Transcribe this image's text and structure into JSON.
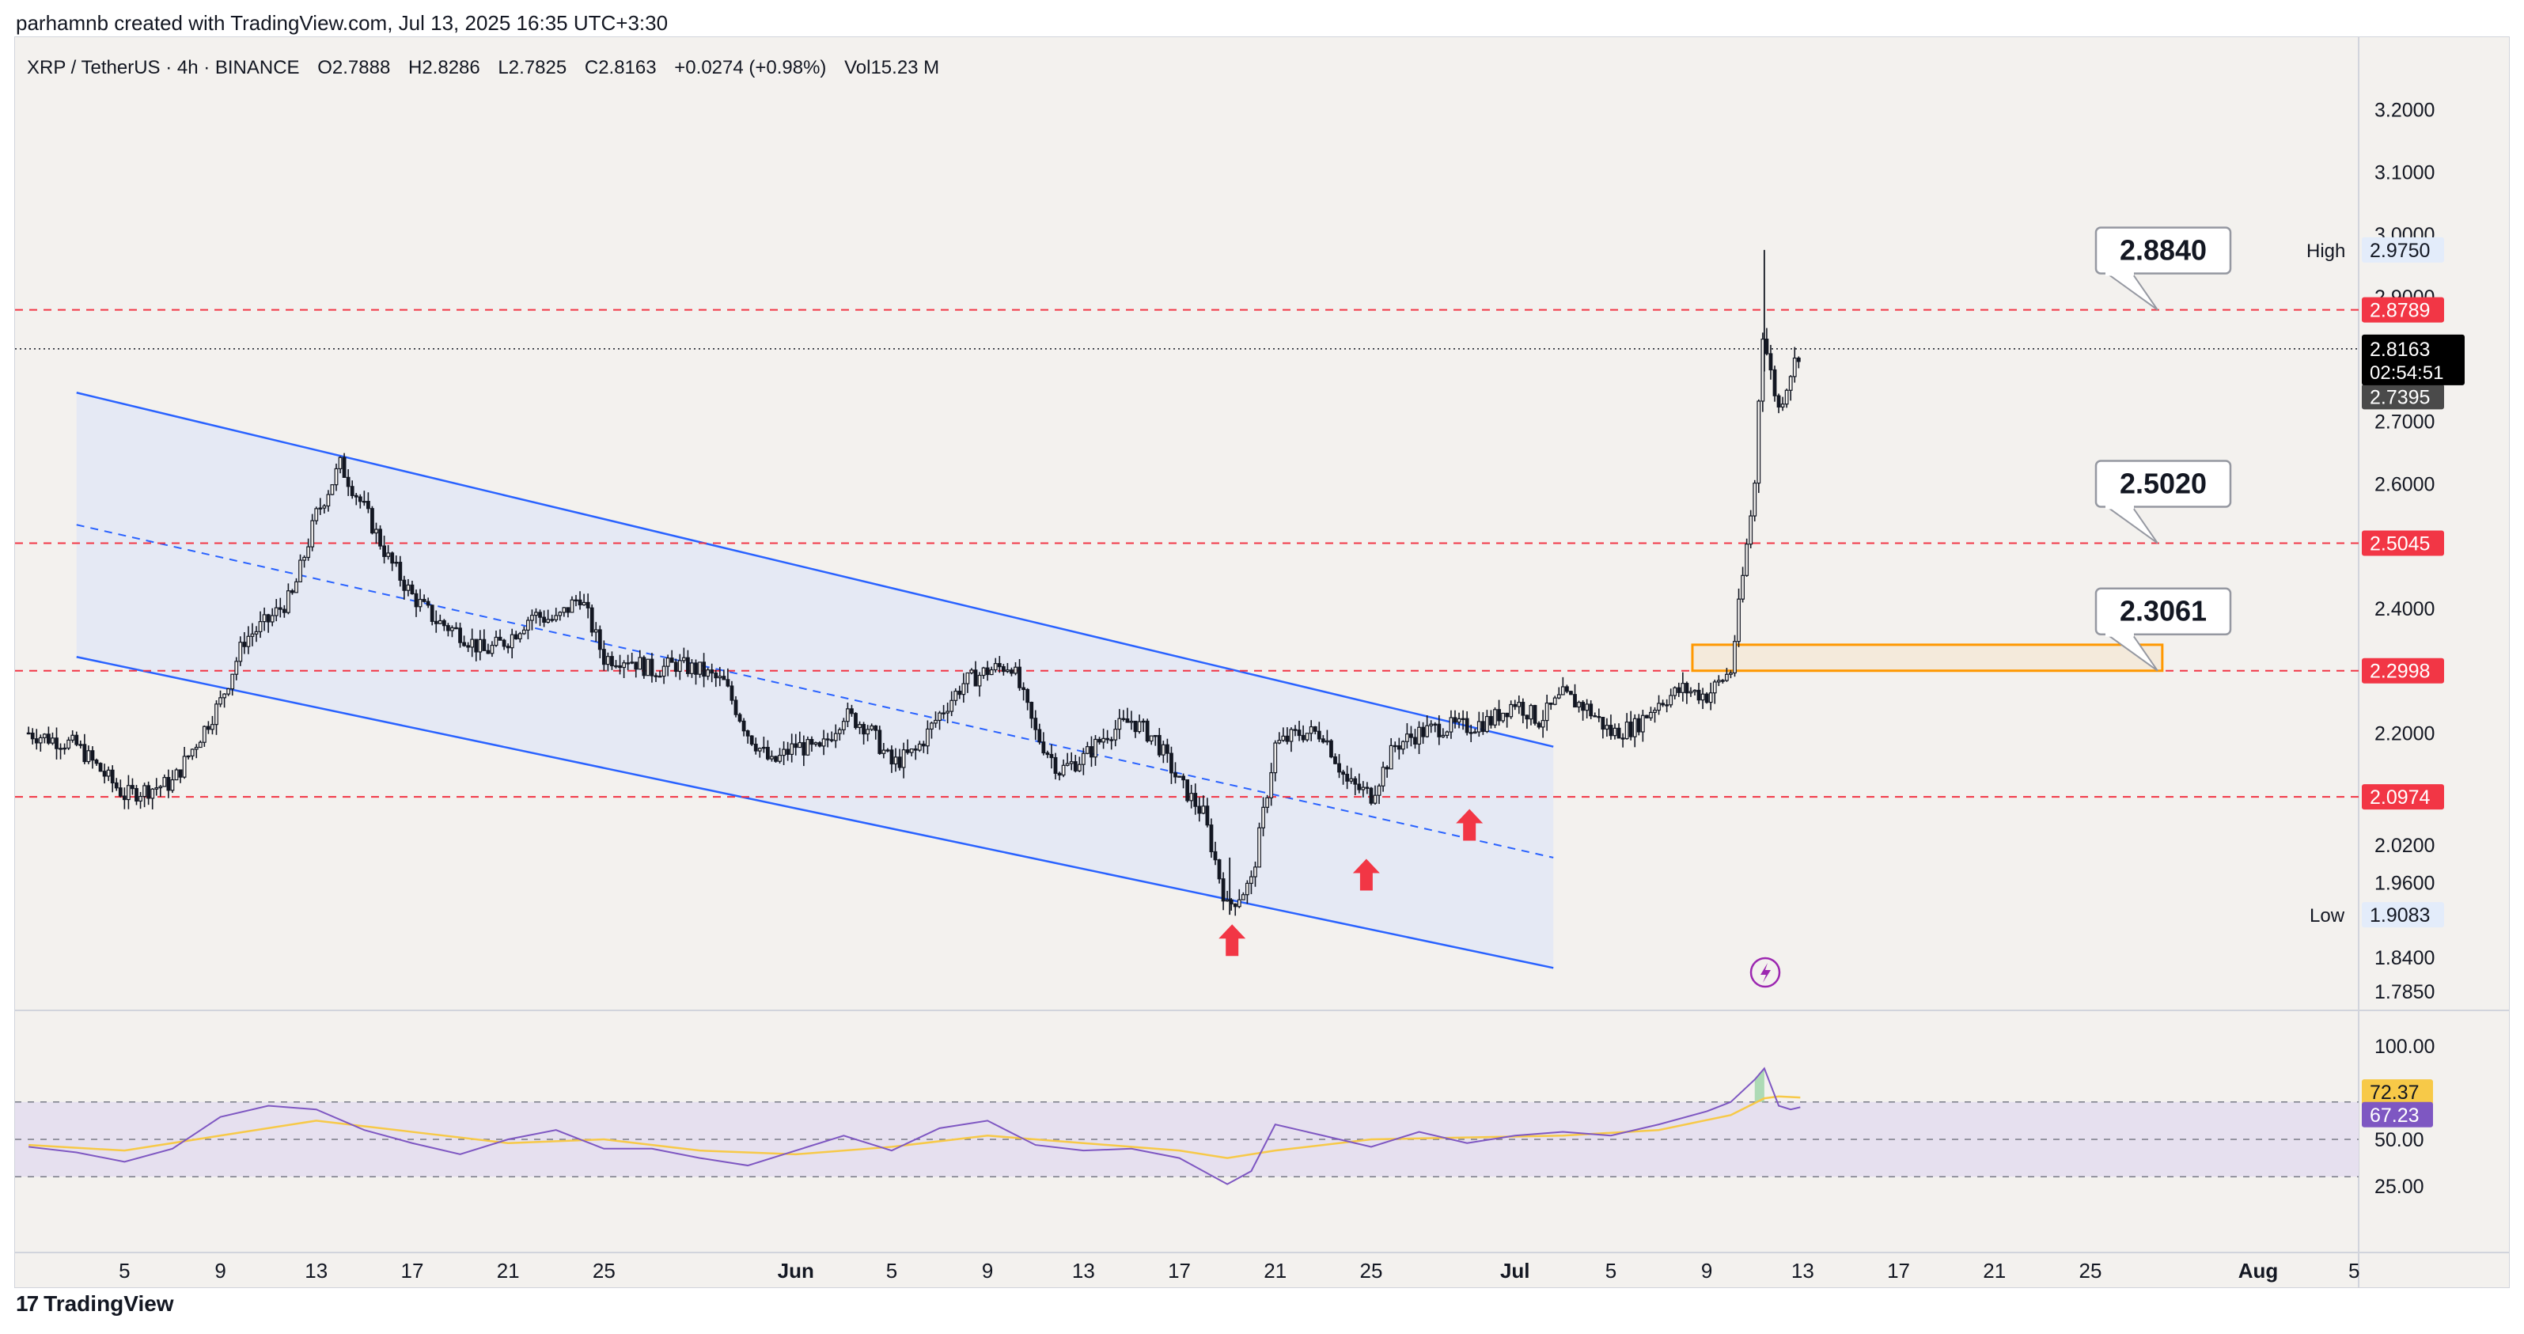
{
  "header": {
    "credit": "parhamnb created with TradingView.com, Jul 13, 2025 16:35 UTC+3:30",
    "symbol": "XRP / TetherUS · 4h · BINANCE",
    "open": "O2.7888",
    "high": "H2.8286",
    "low": "L2.7825",
    "close": "C2.8163",
    "change": "+0.0274 (+0.98%)",
    "volume": "Vol15.23 M"
  },
  "footer": {
    "logo": "17",
    "brand": "TradingView"
  },
  "colors": {
    "background": "#f3f1ee",
    "candle": "#131722",
    "channel_line": "#2962ff",
    "channel_fill": "#e3e8f4",
    "level_line": "#f23645",
    "zone": "#ff9800",
    "arrow": "#f23645",
    "rsi_line": "#7e57c2",
    "rsi_ma": "#f7c948",
    "rsi_band": "#e6e0ef"
  },
  "chart_data": {
    "type": "candlestick",
    "timeframe": "4h",
    "x_ticks": [
      "5",
      "9",
      "13",
      "17",
      "21",
      "25",
      "Jun",
      "5",
      "9",
      "13",
      "17",
      "21",
      "25",
      "Jul",
      "5",
      "9",
      "13",
      "17",
      "21",
      "25",
      "Aug",
      "5"
    ],
    "y_ticks": [
      3.2,
      3.1,
      3.0,
      2.9,
      2.8,
      2.7,
      2.6,
      2.5,
      2.4,
      2.3,
      2.2,
      2.1,
      2.02,
      1.96,
      1.9,
      1.84,
      1.785
    ],
    "y_tick_labels": [
      "3.2000",
      "3.1000",
      "3.0000",
      "2.9000",
      "2.8000",
      "2.7000",
      "2.6000",
      "2.5000",
      "2.4000",
      "2.3000",
      "2.2000",
      "2.1000",
      "2.0200",
      "1.9600",
      "1.9000",
      "1.8400",
      "1.7850"
    ],
    "ylim": [
      1.765,
      3.23
    ],
    "price_path": [
      [
        1,
        2.2
      ],
      [
        3,
        2.18
      ],
      [
        5,
        2.1
      ],
      [
        6,
        2.11
      ],
      [
        7,
        2.12
      ],
      [
        9,
        2.25
      ],
      [
        10,
        2.35
      ],
      [
        11,
        2.38
      ],
      [
        12,
        2.42
      ],
      [
        13,
        2.55
      ],
      [
        14,
        2.63
      ],
      [
        15,
        2.56
      ],
      [
        16,
        2.48
      ],
      [
        17,
        2.42
      ],
      [
        18,
        2.38
      ],
      [
        19,
        2.36
      ],
      [
        20,
        2.33
      ],
      [
        21,
        2.35
      ],
      [
        22,
        2.39
      ],
      [
        23,
        2.38
      ],
      [
        24,
        2.42
      ],
      [
        25,
        2.32
      ],
      [
        26,
        2.32
      ],
      [
        27,
        2.3
      ],
      [
        28,
        2.31
      ],
      [
        29,
        2.3
      ],
      [
        30,
        2.28
      ],
      [
        31,
        2.2
      ],
      [
        32,
        2.15
      ],
      [
        33,
        2.18
      ],
      [
        34,
        2.17
      ],
      [
        35,
        2.23
      ],
      [
        36,
        2.21
      ],
      [
        37,
        2.15
      ],
      [
        38,
        2.17
      ],
      [
        39,
        2.23
      ],
      [
        40,
        2.28
      ],
      [
        41,
        2.3
      ],
      [
        42,
        2.31
      ],
      [
        43,
        2.2
      ],
      [
        44,
        2.14
      ],
      [
        45,
        2.16
      ],
      [
        46,
        2.2
      ],
      [
        47,
        2.22
      ],
      [
        48,
        2.19
      ],
      [
        49,
        2.12
      ],
      [
        50,
        2.07
      ],
      [
        51,
        1.92
      ],
      [
        52,
        1.96
      ],
      [
        53,
        2.18
      ],
      [
        54,
        2.2
      ],
      [
        55,
        2.2
      ],
      [
        56,
        2.12
      ],
      [
        57,
        2.1
      ],
      [
        58,
        2.18
      ],
      [
        59,
        2.2
      ],
      [
        60,
        2.21
      ],
      [
        61,
        2.21
      ],
      [
        62,
        2.22
      ],
      [
        63,
        2.25
      ],
      [
        64,
        2.22
      ],
      [
        65,
        2.26
      ],
      [
        66,
        2.24
      ],
      [
        67,
        2.2
      ],
      [
        68,
        2.21
      ],
      [
        69,
        2.25
      ],
      [
        70,
        2.27
      ],
      [
        71,
        2.26
      ],
      [
        72,
        2.3
      ],
      [
        73,
        2.6
      ],
      [
        73.3,
        2.85
      ],
      [
        73.7,
        2.77
      ],
      [
        74,
        2.72
      ],
      [
        74.5,
        2.78
      ],
      [
        74.9,
        2.8163
      ]
    ],
    "high": {
      "label": "High",
      "value": 2.975,
      "value_label": "2.9750",
      "day": 73.4
    },
    "low": {
      "label": "Low",
      "value": 1.9083,
      "value_label": "1.9083",
      "day": 51.1
    },
    "last_price": {
      "value": 2.8163,
      "label": "2.8163",
      "countdown": "02:54:51"
    },
    "price_label_2": {
      "value": 2.7395,
      "label": "2.7395"
    },
    "levels": [
      {
        "value": 2.8789,
        "label": "2.8789",
        "callout": "2.8840"
      },
      {
        "value": 2.5045,
        "label": "2.5045",
        "callout": "2.5020"
      },
      {
        "value": 2.2998,
        "label": "2.2998",
        "callout": "2.3061"
      },
      {
        "value": 2.0974,
        "label": "2.0974",
        "callout": ""
      }
    ],
    "zone": {
      "x0": 70.4,
      "x1": 90,
      "y_low": 2.2998,
      "y_high": 2.3415
    },
    "channel": {
      "x0": 3,
      "x1": 64.6,
      "upper": [
        2.746,
        2.178
      ],
      "lower": [
        2.322,
        1.823
      ],
      "mid": [
        2.534,
        2.0
      ],
      "fill_bottom": [
        2.322,
        1.823
      ]
    },
    "arrows": [
      {
        "day": 51.2,
        "value": 1.865
      },
      {
        "day": 56.8,
        "value": 1.97
      },
      {
        "day": 61.1,
        "value": 2.05
      }
    ],
    "rsi": {
      "ticks": [
        100,
        50,
        25
      ],
      "tick_labels": [
        "100.00",
        "50.00",
        "25.00"
      ],
      "upper": 70,
      "mid": 50,
      "lower": 30,
      "value": 67.23,
      "value_label": "67.23",
      "ma": 72.37,
      "ma_label": "72.37",
      "path": [
        [
          1,
          46
        ],
        [
          3,
          43
        ],
        [
          5,
          38
        ],
        [
          7,
          45
        ],
        [
          9,
          62
        ],
        [
          11,
          68
        ],
        [
          13,
          66
        ],
        [
          15,
          55
        ],
        [
          17,
          48
        ],
        [
          19,
          42
        ],
        [
          21,
          50
        ],
        [
          23,
          55
        ],
        [
          25,
          45
        ],
        [
          27,
          45
        ],
        [
          29,
          40
        ],
        [
          31,
          36
        ],
        [
          33,
          44
        ],
        [
          35,
          52
        ],
        [
          37,
          44
        ],
        [
          39,
          56
        ],
        [
          41,
          60
        ],
        [
          43,
          47
        ],
        [
          45,
          44
        ],
        [
          47,
          45
        ],
        [
          49,
          40
        ],
        [
          51,
          26
        ],
        [
          52,
          33
        ],
        [
          53,
          58
        ],
        [
          55,
          52
        ],
        [
          57,
          46
        ],
        [
          59,
          54
        ],
        [
          61,
          48
        ],
        [
          63,
          52
        ],
        [
          65,
          54
        ],
        [
          67,
          52
        ],
        [
          69,
          58
        ],
        [
          71,
          65
        ],
        [
          72,
          70
        ],
        [
          73,
          82
        ],
        [
          73.4,
          88
        ],
        [
          74,
          68
        ],
        [
          74.5,
          66
        ],
        [
          74.9,
          67.2
        ]
      ],
      "ma_path": [
        [
          1,
          47
        ],
        [
          5,
          44
        ],
        [
          9,
          52
        ],
        [
          13,
          60
        ],
        [
          17,
          54
        ],
        [
          21,
          48
        ],
        [
          25,
          50
        ],
        [
          29,
          44
        ],
        [
          33,
          42
        ],
        [
          37,
          46
        ],
        [
          41,
          52
        ],
        [
          45,
          48
        ],
        [
          49,
          44
        ],
        [
          51,
          40
        ],
        [
          53,
          44
        ],
        [
          57,
          50
        ],
        [
          61,
          51
        ],
        [
          65,
          52
        ],
        [
          69,
          55
        ],
        [
          72,
          63
        ],
        [
          73.4,
          72
        ],
        [
          74,
          73
        ],
        [
          74.9,
          72.4
        ]
      ]
    }
  }
}
